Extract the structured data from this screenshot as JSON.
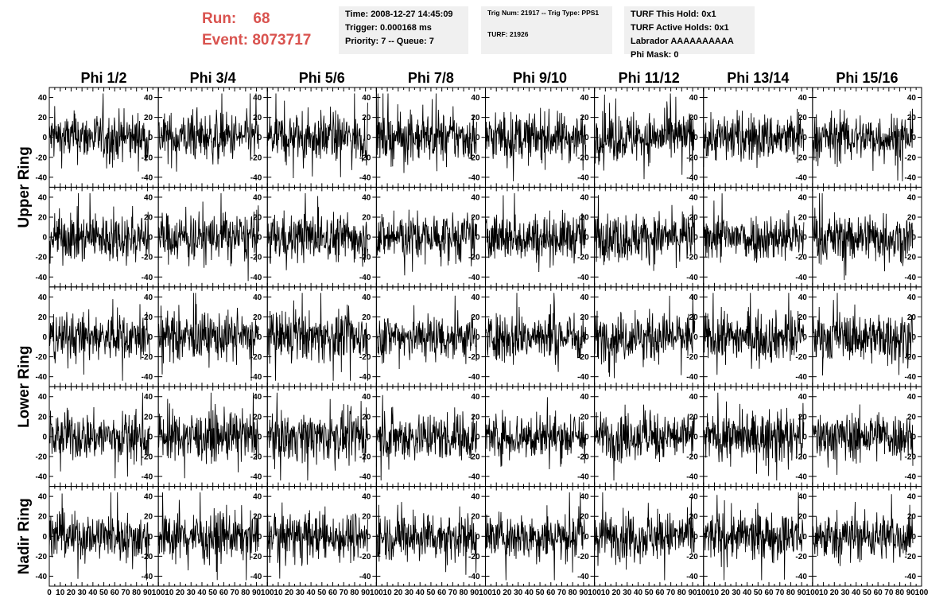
{
  "header": {
    "run_label": "Run:",
    "run_value": "68",
    "event_label": "Event:",
    "event_value": "8073717"
  },
  "info_time": {
    "line1": "Time: 2008-12-27 14:45:09",
    "line2": "Trigger: 0.000168 ms",
    "line3": "Priority: 7 -- Queue: 7"
  },
  "info_trig": {
    "line1": "Trig Num: 21917 -- Trig Type: PPS1",
    "line2": "TURF: 21926"
  },
  "info_turf": {
    "line1": "TURF This Hold: 0x1",
    "line2": "TURF Active Holds: 0x1",
    "line3": "Labrador AAAAAAAAAA",
    "line4": "Phi Mask: 0"
  },
  "chart_data": {
    "type": "line",
    "columns": [
      "Phi 1/2",
      "Phi 3/4",
      "Phi 5/6",
      "Phi 7/8",
      "Phi 9/10",
      "Phi 11/12",
      "Phi 13/14",
      "Phi 15/16"
    ],
    "row_labels": [
      "Upper Ring",
      "Lower Ring",
      "Nadir Ring"
    ],
    "x_ticks": [
      "0",
      "10",
      "20",
      "30",
      "40",
      "50",
      "60",
      "70",
      "80",
      "90",
      "100"
    ],
    "y_ticks": [
      "40",
      "20",
      "0",
      "-20",
      "-40"
    ],
    "xlim": [
      0,
      100
    ],
    "ylim": [
      -50,
      50
    ],
    "panel_rows": 5,
    "panel_cols": 8,
    "samples_per_trace": 260,
    "trace_color": "#000000",
    "grid": false
  }
}
